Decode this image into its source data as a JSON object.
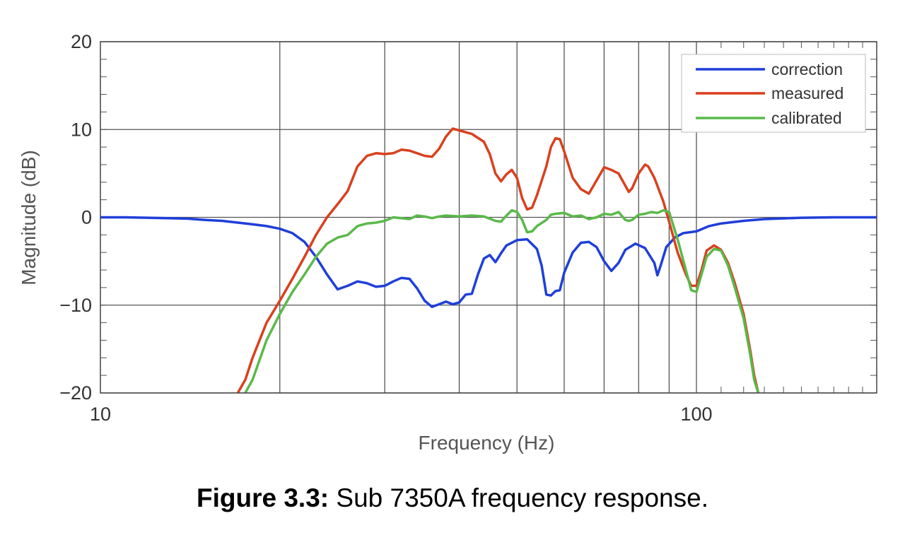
{
  "chart_data": {
    "type": "line",
    "xscale": "log",
    "xlim": [
      10,
      200
    ],
    "ylim": [
      -20,
      20
    ],
    "xlabel": "Frequency (Hz)",
    "ylabel": "Magnitude (dB)",
    "xticks": [
      {
        "value": 10,
        "label": "10"
      },
      {
        "value": 100,
        "label": "100"
      }
    ],
    "yticks": [
      {
        "value": 20,
        "label": "20"
      },
      {
        "value": 10,
        "label": "10"
      },
      {
        "value": 0,
        "label": "0"
      },
      {
        "value": -10,
        "label": "−10"
      },
      {
        "value": -20,
        "label": "−20"
      }
    ],
    "grid": true,
    "legend": "top-right",
    "series": [
      {
        "name": "correction",
        "color": "#1f3fd9",
        "points": [
          [
            10,
            0
          ],
          [
            11,
            0
          ],
          [
            12,
            -0.05
          ],
          [
            13,
            -0.1
          ],
          [
            14,
            -0.15
          ],
          [
            15,
            -0.3
          ],
          [
            16,
            -0.4
          ],
          [
            17,
            -0.6
          ],
          [
            18,
            -0.8
          ],
          [
            19,
            -1.0
          ],
          [
            20,
            -1.3
          ],
          [
            21,
            -1.8
          ],
          [
            22,
            -2.8
          ],
          [
            23,
            -4.5
          ],
          [
            24,
            -6.5
          ],
          [
            25,
            -8.2
          ],
          [
            26,
            -7.8
          ],
          [
            27,
            -7.3
          ],
          [
            28,
            -7.5
          ],
          [
            29,
            -7.9
          ],
          [
            30,
            -7.8
          ],
          [
            31,
            -7.3
          ],
          [
            32,
            -6.9
          ],
          [
            33,
            -7.0
          ],
          [
            34,
            -8.1
          ],
          [
            35,
            -9.5
          ],
          [
            36,
            -10.2
          ],
          [
            37,
            -9.9
          ],
          [
            38,
            -9.6
          ],
          [
            39,
            -9.9
          ],
          [
            40,
            -9.7
          ],
          [
            41,
            -8.8
          ],
          [
            42,
            -8.7
          ],
          [
            43,
            -6.5
          ],
          [
            44,
            -4.7
          ],
          [
            45,
            -4.3
          ],
          [
            46,
            -5.1
          ],
          [
            47,
            -4.1
          ],
          [
            48,
            -3.2
          ],
          [
            50,
            -2.6
          ],
          [
            52,
            -2.5
          ],
          [
            54,
            -3.6
          ],
          [
            55,
            -5.5
          ],
          [
            56,
            -8.8
          ],
          [
            57,
            -8.9
          ],
          [
            58,
            -8.4
          ],
          [
            59,
            -8.3
          ],
          [
            60,
            -6.3
          ],
          [
            62,
            -4.0
          ],
          [
            64,
            -2.9
          ],
          [
            66,
            -2.8
          ],
          [
            68,
            -3.4
          ],
          [
            70,
            -5.0
          ],
          [
            72,
            -6.1
          ],
          [
            74,
            -5.2
          ],
          [
            76,
            -3.7
          ],
          [
            79,
            -3.0
          ],
          [
            82,
            -3.5
          ],
          [
            85,
            -5.2
          ],
          [
            86,
            -6.6
          ],
          [
            87,
            -5.6
          ],
          [
            89,
            -3.4
          ],
          [
            92,
            -2.3
          ],
          [
            95,
            -1.8
          ],
          [
            100,
            -1.6
          ],
          [
            105,
            -1.0
          ],
          [
            110,
            -0.7
          ],
          [
            120,
            -0.4
          ],
          [
            130,
            -0.2
          ],
          [
            150,
            -0.05
          ],
          [
            170,
            0
          ],
          [
            200,
            0
          ]
        ]
      },
      {
        "name": "measured",
        "color": "#d9401e",
        "points": [
          [
            17,
            -20
          ],
          [
            17.5,
            -18.5
          ],
          [
            18,
            -16
          ],
          [
            19,
            -12
          ],
          [
            20,
            -9.5
          ],
          [
            21,
            -7
          ],
          [
            22,
            -4.5
          ],
          [
            23,
            -2
          ],
          [
            24,
            0
          ],
          [
            25,
            1.5
          ],
          [
            26,
            3
          ],
          [
            27,
            5.8
          ],
          [
            28,
            7.0
          ],
          [
            29,
            7.3
          ],
          [
            30,
            7.2
          ],
          [
            31,
            7.3
          ],
          [
            32,
            7.7
          ],
          [
            33,
            7.6
          ],
          [
            34,
            7.3
          ],
          [
            35,
            7.0
          ],
          [
            36,
            6.9
          ],
          [
            37,
            7.8
          ],
          [
            38,
            9.2
          ],
          [
            39,
            10.1
          ],
          [
            40,
            9.9
          ],
          [
            42,
            9.5
          ],
          [
            44,
            8.6
          ],
          [
            45,
            7.2
          ],
          [
            46,
            5.0
          ],
          [
            47,
            4.1
          ],
          [
            48,
            4.9
          ],
          [
            49,
            5.4
          ],
          [
            50,
            4.5
          ],
          [
            51,
            2.2
          ],
          [
            52,
            0.9
          ],
          [
            53,
            1.1
          ],
          [
            54,
            2.5
          ],
          [
            56,
            5.8
          ],
          [
            57,
            8.0
          ],
          [
            58,
            9.0
          ],
          [
            59,
            8.9
          ],
          [
            60,
            7.5
          ],
          [
            62,
            4.5
          ],
          [
            64,
            3.2
          ],
          [
            66,
            2.7
          ],
          [
            68,
            4.2
          ],
          [
            70,
            5.7
          ],
          [
            72,
            5.4
          ],
          [
            74,
            5.0
          ],
          [
            76,
            3.6
          ],
          [
            77,
            2.9
          ],
          [
            78,
            3.3
          ],
          [
            80,
            5.0
          ],
          [
            82,
            6.0
          ],
          [
            83,
            5.8
          ],
          [
            85,
            4.5
          ],
          [
            88,
            1.8
          ],
          [
            90,
            -0.5
          ],
          [
            93,
            -4.0
          ],
          [
            96,
            -6.5
          ],
          [
            98,
            -7.8
          ],
          [
            100,
            -7.8
          ],
          [
            102,
            -6.0
          ],
          [
            104,
            -3.8
          ],
          [
            107,
            -3.2
          ],
          [
            110,
            -3.7
          ],
          [
            113,
            -5.2
          ],
          [
            116,
            -7.5
          ],
          [
            120,
            -11
          ],
          [
            123,
            -15
          ],
          [
            125,
            -18
          ],
          [
            127,
            -20
          ]
        ]
      },
      {
        "name": "calibrated",
        "color": "#5ab94a",
        "points": [
          [
            17.5,
            -20
          ],
          [
            18,
            -18.5
          ],
          [
            19,
            -14
          ],
          [
            20,
            -11
          ],
          [
            21,
            -8.5
          ],
          [
            22,
            -6.5
          ],
          [
            23,
            -4.5
          ],
          [
            24,
            -3.0
          ],
          [
            25,
            -2.3
          ],
          [
            26,
            -2.0
          ],
          [
            27,
            -1.0
          ],
          [
            28,
            -0.7
          ],
          [
            29,
            -0.6
          ],
          [
            30,
            -0.4
          ],
          [
            31,
            0
          ],
          [
            32,
            -0.1
          ],
          [
            33,
            -0.2
          ],
          [
            34,
            0.2
          ],
          [
            35,
            0.1
          ],
          [
            36,
            -0.1
          ],
          [
            37,
            0.1
          ],
          [
            38,
            0.2
          ],
          [
            40,
            0.1
          ],
          [
            42,
            0.2
          ],
          [
            44,
            0.1
          ],
          [
            46,
            -0.4
          ],
          [
            47,
            -0.5
          ],
          [
            48,
            0.2
          ],
          [
            49,
            0.8
          ],
          [
            50,
            0.6
          ],
          [
            51,
            -0.3
          ],
          [
            52,
            -1.7
          ],
          [
            53,
            -1.6
          ],
          [
            54,
            -1.0
          ],
          [
            56,
            -0.3
          ],
          [
            57,
            0.3
          ],
          [
            58,
            0.4
          ],
          [
            60,
            0.5
          ],
          [
            62,
            0.1
          ],
          [
            64,
            0.2
          ],
          [
            66,
            -0.2
          ],
          [
            68,
            0.0
          ],
          [
            70,
            0.4
          ],
          [
            72,
            0.3
          ],
          [
            74,
            0.6
          ],
          [
            76,
            -0.3
          ],
          [
            77,
            -0.4
          ],
          [
            78,
            -0.3
          ],
          [
            80,
            0.3
          ],
          [
            82,
            0.4
          ],
          [
            84,
            0.6
          ],
          [
            86,
            0.5
          ],
          [
            88,
            0.8
          ],
          [
            90,
            0.6
          ],
          [
            93,
            -2.5
          ],
          [
            96,
            -6
          ],
          [
            98,
            -8.3
          ],
          [
            100,
            -8.5
          ],
          [
            102,
            -6.5
          ],
          [
            104,
            -4.5
          ],
          [
            107,
            -3.6
          ],
          [
            110,
            -3.8
          ],
          [
            113,
            -5.5
          ],
          [
            116,
            -8
          ],
          [
            120,
            -11.5
          ],
          [
            123,
            -15.5
          ],
          [
            125,
            -18.5
          ],
          [
            127,
            -20
          ]
        ]
      }
    ]
  },
  "caption": {
    "label": "Figure 3.3:",
    "text": " Sub 7350A frequency response."
  }
}
